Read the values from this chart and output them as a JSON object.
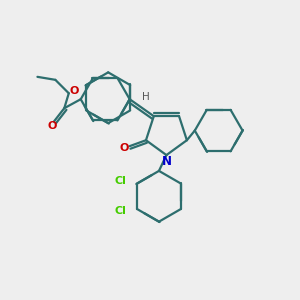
{
  "bg_color": "#eeeeee",
  "bond_color": "#2d6e6e",
  "N_color": "#0000cc",
  "O_color": "#cc0000",
  "Cl_color": "#44cc00",
  "H_color": "#555555",
  "line_width": 1.6,
  "figsize": [
    3.0,
    3.0
  ],
  "dpi": 100,
  "xlim": [
    0,
    10
  ],
  "ylim": [
    0,
    10
  ]
}
